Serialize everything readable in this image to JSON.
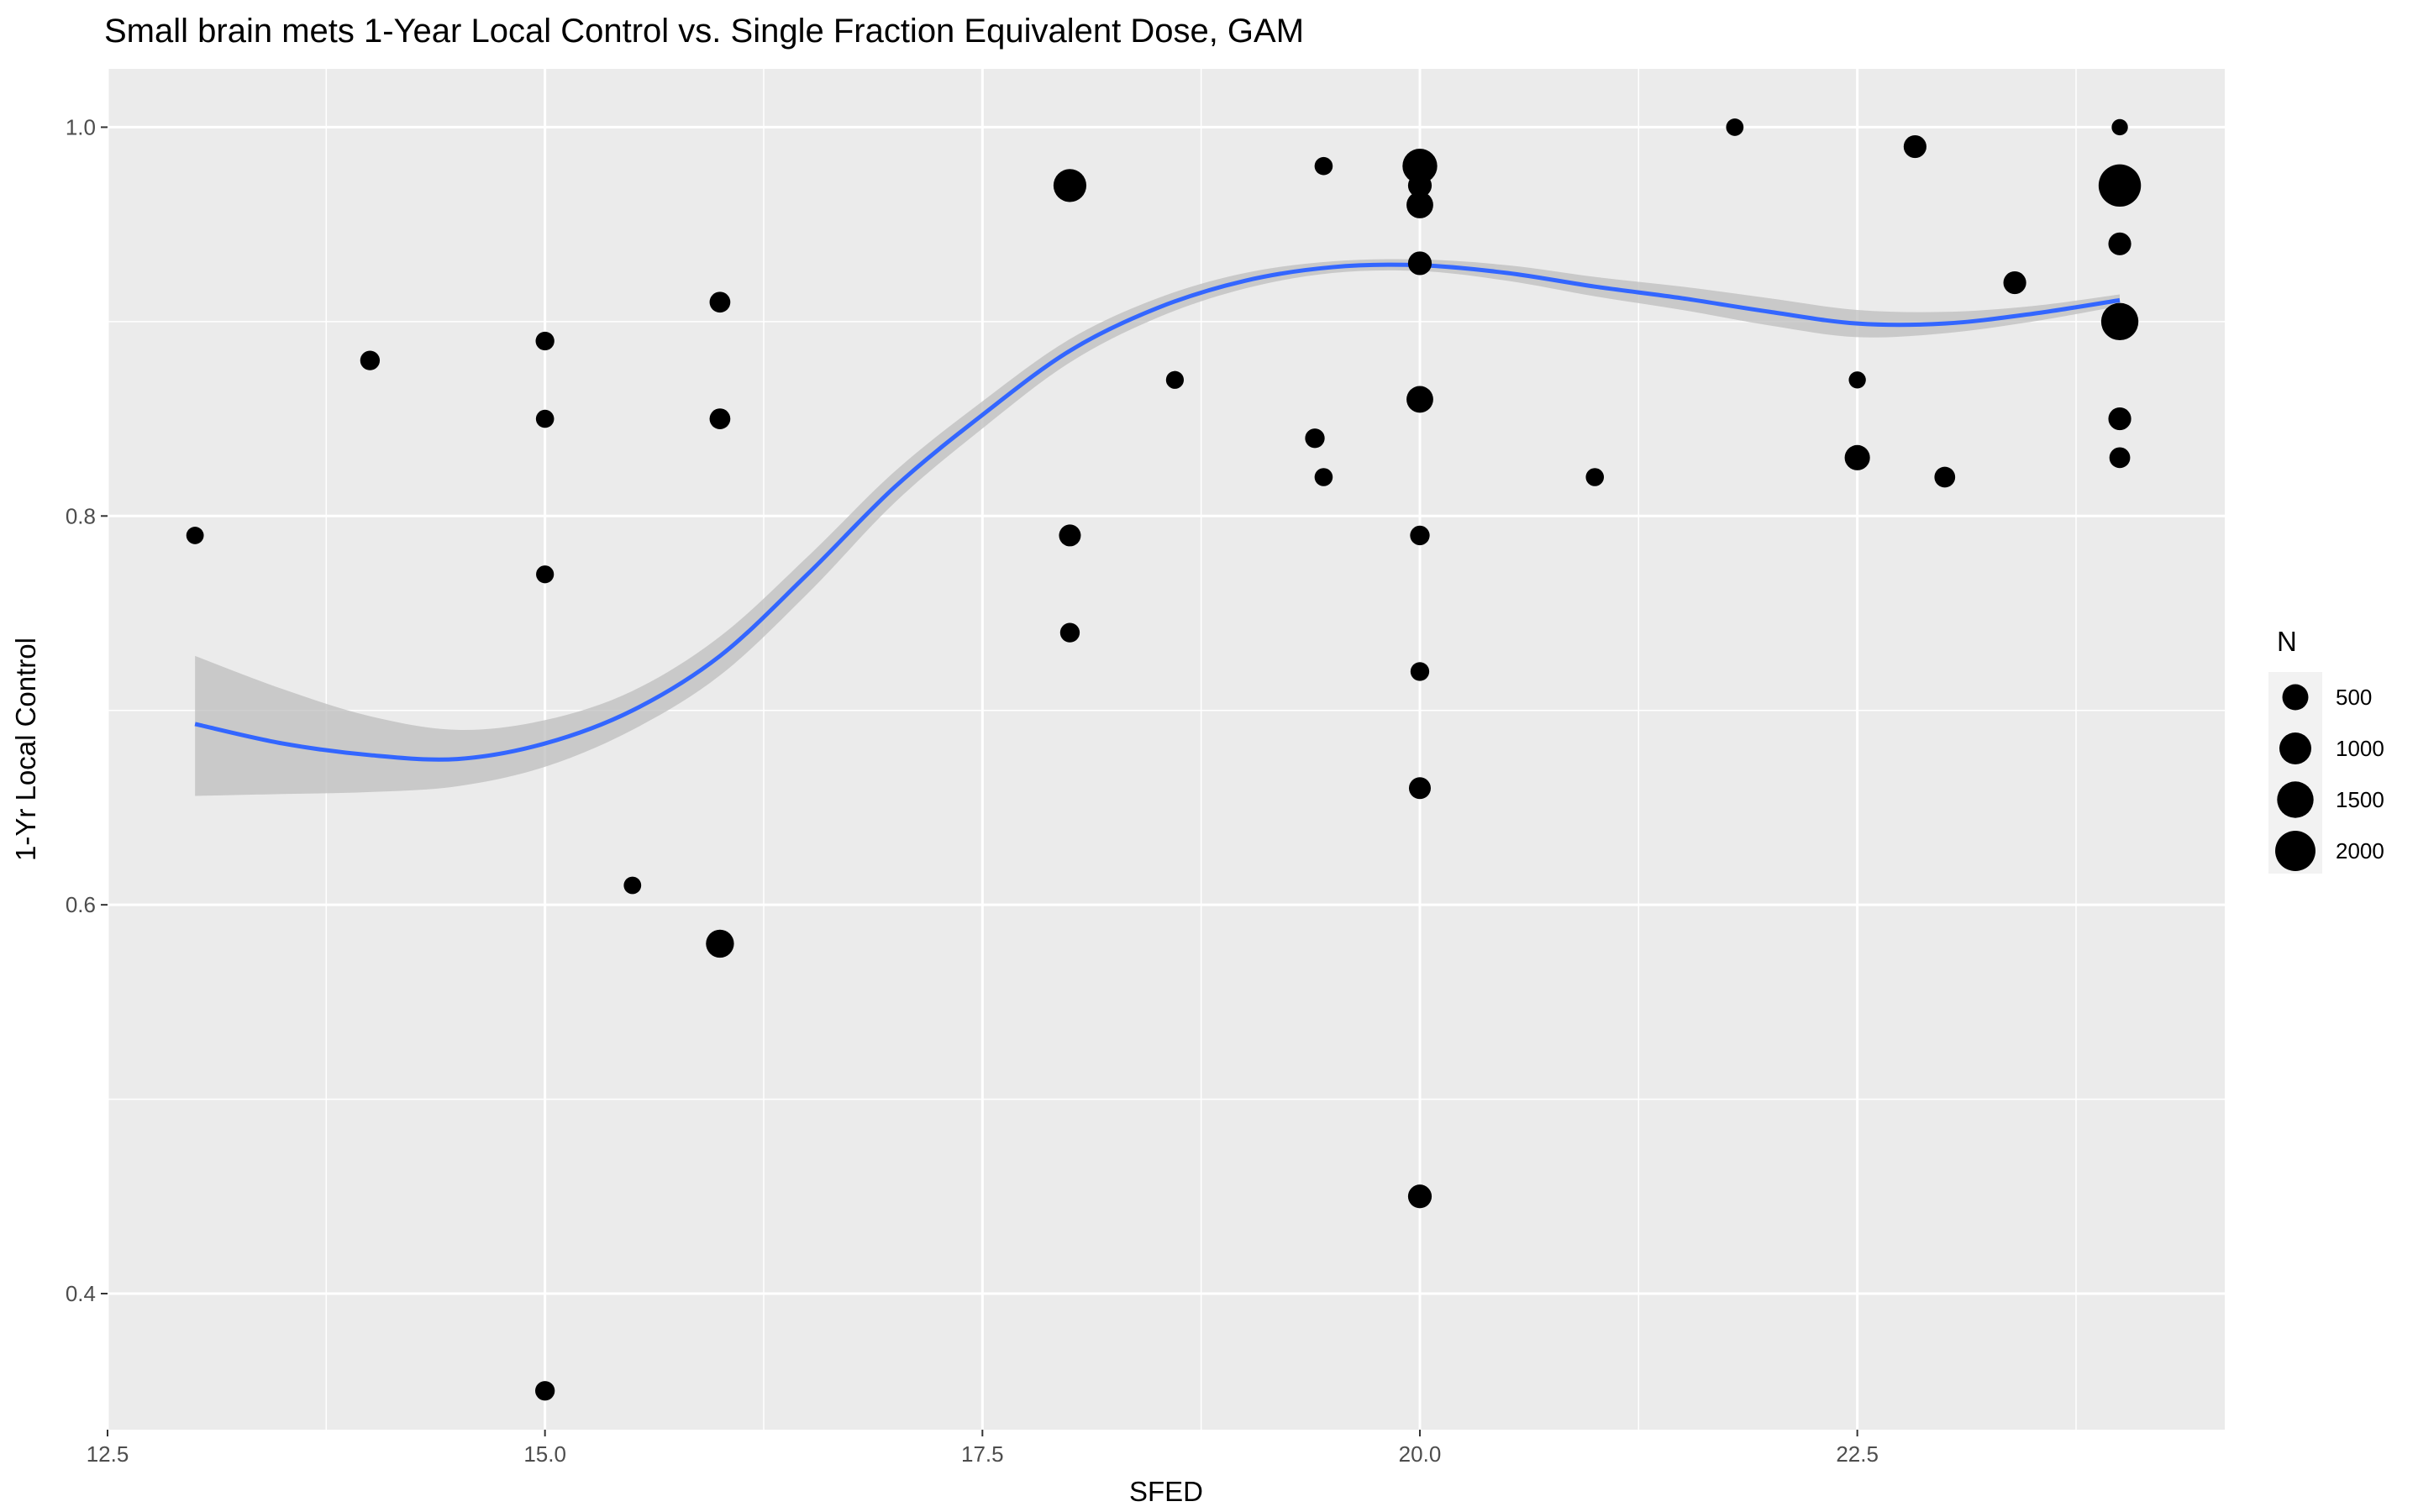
{
  "chart_data": {
    "type": "scatter",
    "title": "Small brain mets 1-Year Local Control vs. Single Fraction Equivalent Dose, GAM",
    "xlabel": "SFED",
    "ylabel": "1-Yr Local Control",
    "xlim": [
      12.5,
      24.6
    ],
    "ylim": [
      0.33,
      1.03
    ],
    "x_ticks": [
      "12.5",
      "15.0",
      "17.5",
      "20.0",
      "22.5"
    ],
    "y_ticks": [
      "0.4",
      "0.6",
      "0.8",
      "1.0"
    ],
    "x_tick_values": [
      12.5,
      15.0,
      17.5,
      20.0,
      22.5
    ],
    "y_tick_values": [
      0.4,
      0.6,
      0.8,
      1.0
    ],
    "grid": true,
    "legend": {
      "title": "N",
      "position": "right",
      "entries": [
        {
          "label": "500",
          "value": 500
        },
        {
          "label": "1000",
          "value": 1000
        },
        {
          "label": "1500",
          "value": 1500
        },
        {
          "label": "2000",
          "value": 2000
        }
      ]
    },
    "points": [
      {
        "x": 13.0,
        "y": 0.79,
        "n": 80
      },
      {
        "x": 14.0,
        "y": 0.88,
        "n": 150
      },
      {
        "x": 15.0,
        "y": 0.89,
        "n": 120
      },
      {
        "x": 15.0,
        "y": 0.85,
        "n": 100
      },
      {
        "x": 15.0,
        "y": 0.77,
        "n": 90
      },
      {
        "x": 15.0,
        "y": 0.35,
        "n": 150
      },
      {
        "x": 15.5,
        "y": 0.61,
        "n": 80
      },
      {
        "x": 16.0,
        "y": 0.91,
        "n": 200
      },
      {
        "x": 16.0,
        "y": 0.85,
        "n": 200
      },
      {
        "x": 16.0,
        "y": 0.58,
        "n": 650
      },
      {
        "x": 18.0,
        "y": 0.97,
        "n": 1100
      },
      {
        "x": 18.0,
        "y": 0.79,
        "n": 250
      },
      {
        "x": 18.0,
        "y": 0.74,
        "n": 150
      },
      {
        "x": 18.6,
        "y": 0.87,
        "n": 90
      },
      {
        "x": 19.4,
        "y": 0.84,
        "n": 150
      },
      {
        "x": 19.45,
        "y": 0.98,
        "n": 100
      },
      {
        "x": 19.45,
        "y": 0.82,
        "n": 100
      },
      {
        "x": 20.0,
        "y": 0.98,
        "n": 1300
      },
      {
        "x": 20.0,
        "y": 0.97,
        "n": 350
      },
      {
        "x": 20.0,
        "y": 0.96,
        "n": 550
      },
      {
        "x": 20.0,
        "y": 0.93,
        "n": 350
      },
      {
        "x": 20.0,
        "y": 0.86,
        "n": 550
      },
      {
        "x": 20.0,
        "y": 0.79,
        "n": 150
      },
      {
        "x": 20.0,
        "y": 0.72,
        "n": 120
      },
      {
        "x": 20.0,
        "y": 0.66,
        "n": 250
      },
      {
        "x": 20.0,
        "y": 0.45,
        "n": 350
      },
      {
        "x": 21.0,
        "y": 0.82,
        "n": 100
      },
      {
        "x": 21.8,
        "y": 1.0,
        "n": 80
      },
      {
        "x": 22.5,
        "y": 0.87,
        "n": 70
      },
      {
        "x": 22.5,
        "y": 0.83,
        "n": 450
      },
      {
        "x": 22.83,
        "y": 0.99,
        "n": 300
      },
      {
        "x": 23.0,
        "y": 0.82,
        "n": 200
      },
      {
        "x": 23.4,
        "y": 0.92,
        "n": 300
      },
      {
        "x": 24.0,
        "y": 1.0,
        "n": 50
      },
      {
        "x": 24.0,
        "y": 0.97,
        "n": 2300
      },
      {
        "x": 24.0,
        "y": 0.94,
        "n": 300
      },
      {
        "x": 24.0,
        "y": 0.9,
        "n": 1600
      },
      {
        "x": 24.0,
        "y": 0.85,
        "n": 300
      },
      {
        "x": 24.0,
        "y": 0.83,
        "n": 200
      }
    ],
    "smooth": {
      "method": "GAM",
      "color": "#3366ff",
      "band_color": "#bdbdbd",
      "fit": [
        {
          "x": 13.0,
          "y": 0.693,
          "lo": 0.656,
          "hi": 0.728
        },
        {
          "x": 13.5,
          "y": 0.683,
          "lo": 0.657,
          "hi": 0.711
        },
        {
          "x": 14.0,
          "y": 0.677,
          "lo": 0.658,
          "hi": 0.697
        },
        {
          "x": 14.5,
          "y": 0.675,
          "lo": 0.661,
          "hi": 0.69
        },
        {
          "x": 15.0,
          "y": 0.683,
          "lo": 0.671,
          "hi": 0.695
        },
        {
          "x": 15.5,
          "y": 0.7,
          "lo": 0.69,
          "hi": 0.71
        },
        {
          "x": 16.0,
          "y": 0.728,
          "lo": 0.718,
          "hi": 0.738
        },
        {
          "x": 16.5,
          "y": 0.77,
          "lo": 0.76,
          "hi": 0.779
        },
        {
          "x": 17.0,
          "y": 0.815,
          "lo": 0.807,
          "hi": 0.823
        },
        {
          "x": 17.5,
          "y": 0.852,
          "lo": 0.845,
          "hi": 0.859
        },
        {
          "x": 18.0,
          "y": 0.885,
          "lo": 0.879,
          "hi": 0.891
        },
        {
          "x": 18.5,
          "y": 0.907,
          "lo": 0.902,
          "hi": 0.912
        },
        {
          "x": 19.0,
          "y": 0.921,
          "lo": 0.917,
          "hi": 0.925
        },
        {
          "x": 19.5,
          "y": 0.928,
          "lo": 0.925,
          "hi": 0.931
        },
        {
          "x": 20.0,
          "y": 0.929,
          "lo": 0.926,
          "hi": 0.932
        },
        {
          "x": 20.5,
          "y": 0.925,
          "lo": 0.921,
          "hi": 0.929
        },
        {
          "x": 21.0,
          "y": 0.918,
          "lo": 0.913,
          "hi": 0.923
        },
        {
          "x": 21.5,
          "y": 0.912,
          "lo": 0.906,
          "hi": 0.918
        },
        {
          "x": 22.0,
          "y": 0.905,
          "lo": 0.898,
          "hi": 0.912
        },
        {
          "x": 22.5,
          "y": 0.899,
          "lo": 0.892,
          "hi": 0.906
        },
        {
          "x": 23.0,
          "y": 0.899,
          "lo": 0.894,
          "hi": 0.905
        },
        {
          "x": 23.5,
          "y": 0.904,
          "lo": 0.9,
          "hi": 0.908
        },
        {
          "x": 24.0,
          "y": 0.911,
          "lo": 0.908,
          "hi": 0.914
        }
      ]
    }
  }
}
